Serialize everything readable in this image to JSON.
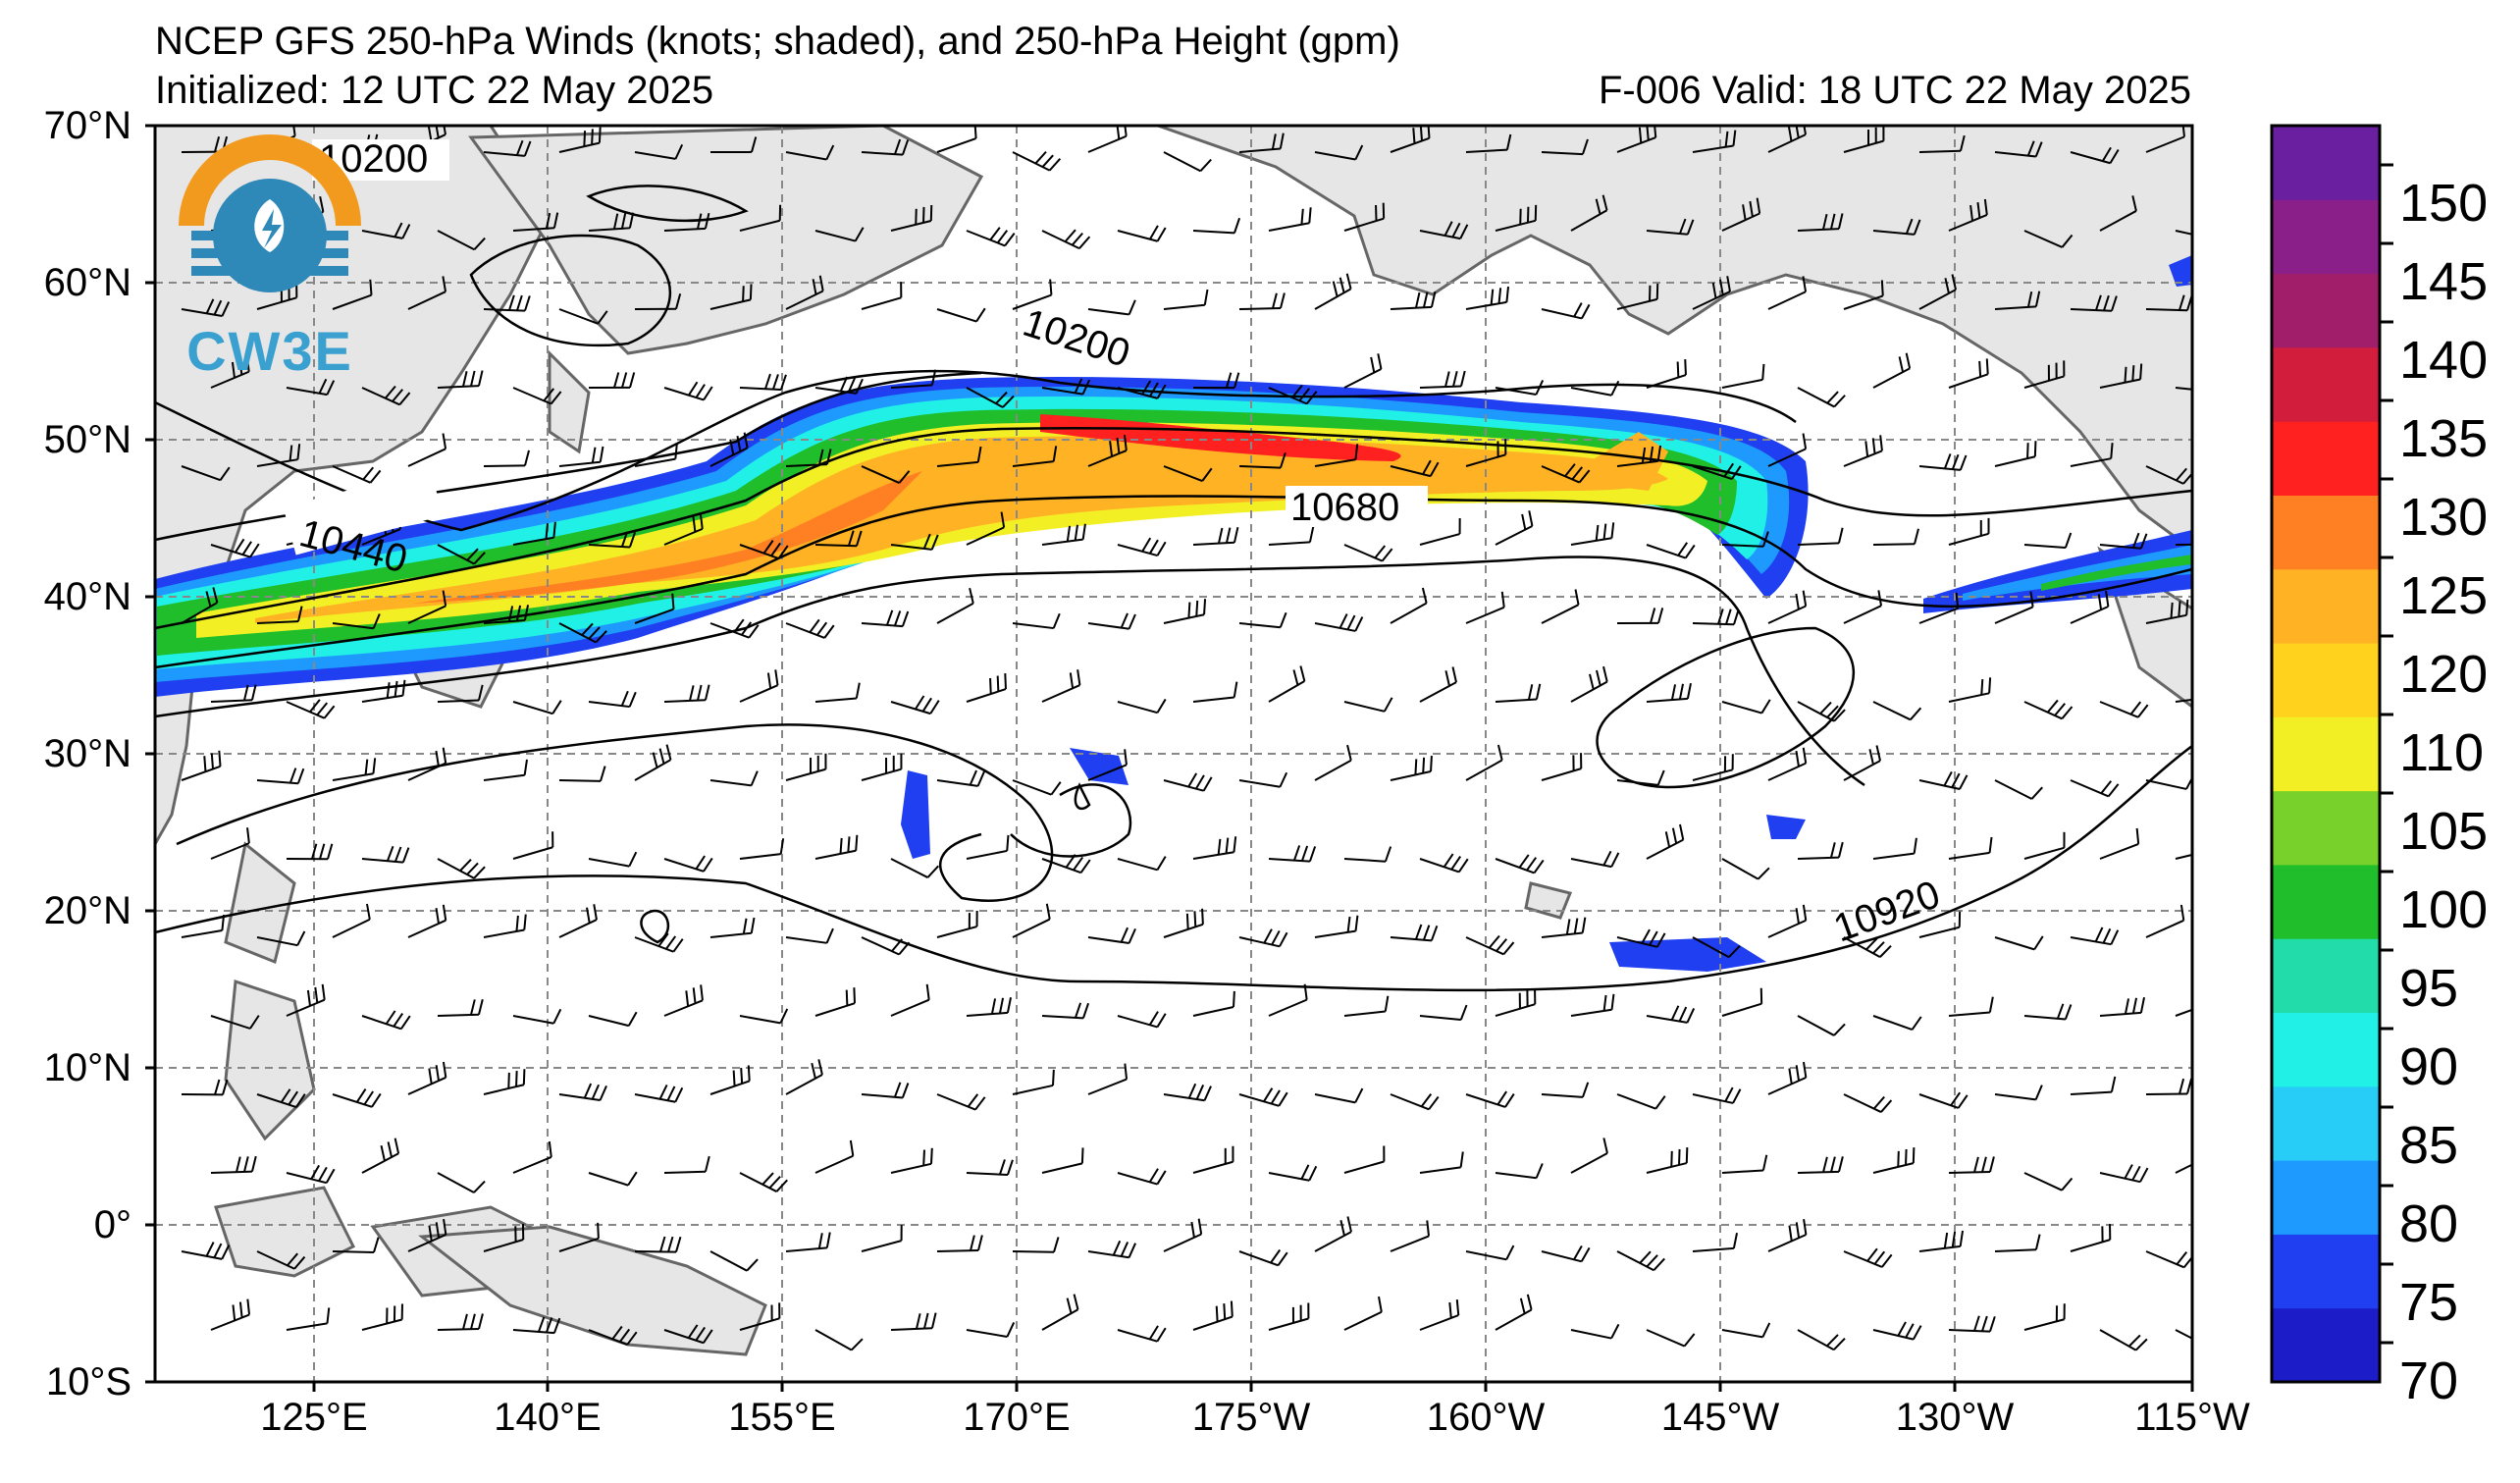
{
  "header": {
    "title": "NCEP GFS 250-hPa Winds (knots; shaded), and 250-hPa Height (gpm)",
    "initialized": "Initialized: 12 UTC 22 May 2025",
    "valid": "F-006  Valid: 18 UTC 22 May 2025"
  },
  "logo": {
    "text": "CW3E",
    "icon": "cw3e-logo-icon"
  },
  "axes": {
    "lat_labels": [
      "70°N",
      "60°N",
      "50°N",
      "40°N",
      "30°N",
      "20°N",
      "10°N",
      "0°",
      "10°S"
    ],
    "lon_labels": [
      "125°E",
      "140°E",
      "155°E",
      "170°E",
      "175°W",
      "160°W",
      "145°W",
      "130°W",
      "115°W"
    ]
  },
  "contour_labels": [
    "10200",
    "10200",
    "10440",
    "10680",
    "10920"
  ],
  "colorbar": {
    "ticks": [
      "70",
      "75",
      "80",
      "85",
      "90",
      "95",
      "100",
      "105",
      "110",
      "120",
      "125",
      "130",
      "135",
      "140",
      "145",
      "150"
    ],
    "colors": [
      "#1c1cc8",
      "#1f3ff0",
      "#1e9aff",
      "#27cdf6",
      "#20f0e6",
      "#22dcaa",
      "#1fbe2a",
      "#78d12a",
      "#f2f025",
      "#ffd21e",
      "#ffb224",
      "#ff7f23",
      "#ff2020",
      "#d21e3c",
      "#a01e6a",
      "#8a1f8a",
      "#6a1fa0"
    ]
  },
  "colors": {
    "land": "#e6e6e6",
    "ocean": "#ffffff",
    "grid": "#888888"
  }
}
